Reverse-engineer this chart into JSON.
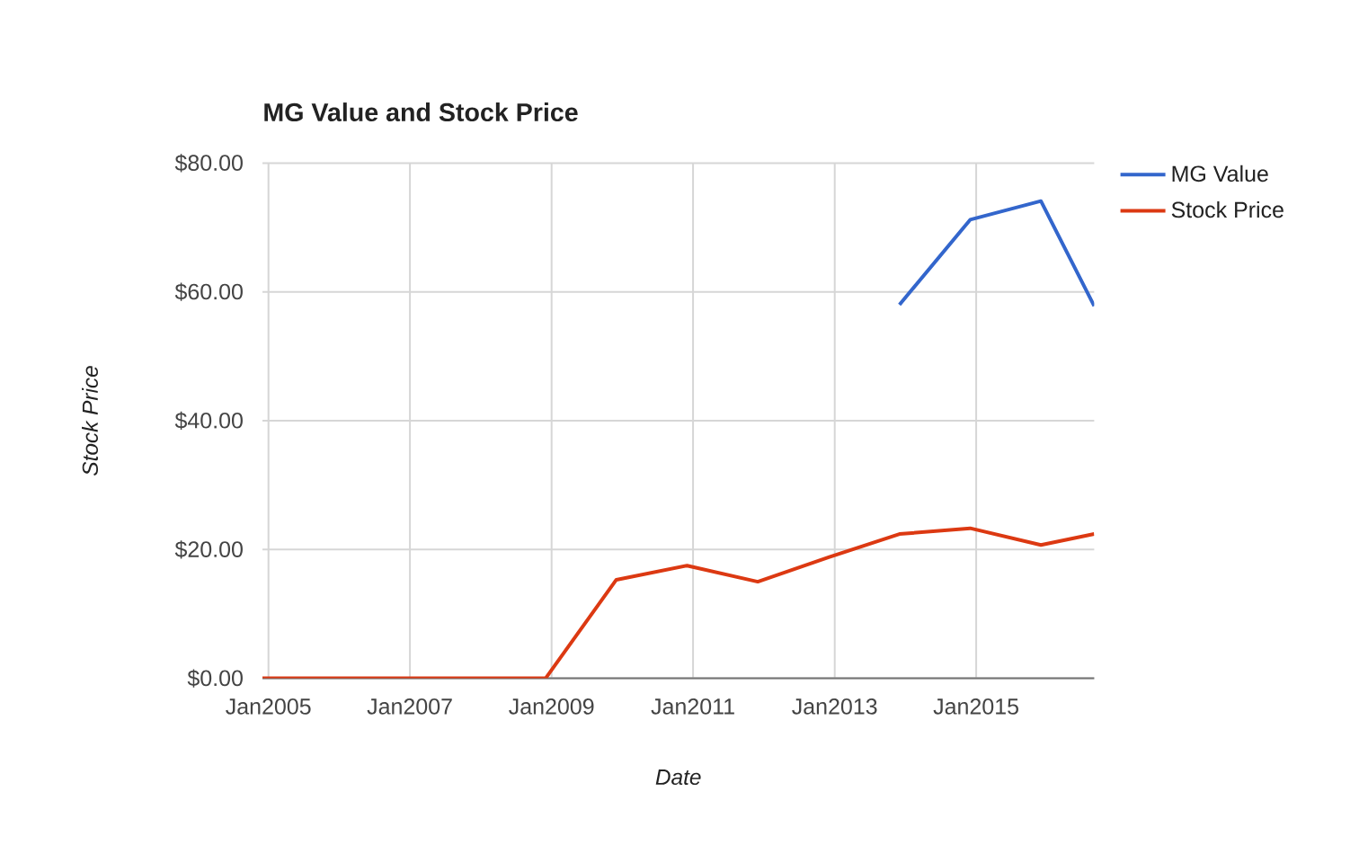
{
  "chart_data": {
    "type": "line",
    "title": "MG Value and Stock Price",
    "xlabel": "Date",
    "ylabel": "Stock Price",
    "x": [
      "2004-12",
      "2005-12",
      "2006-12",
      "2007-12",
      "2008-12",
      "2009-12",
      "2010-12",
      "2011-12",
      "2012-12",
      "2013-12",
      "2014-12",
      "2015-12",
      "2016-09"
    ],
    "series": [
      {
        "name": "MG Value",
        "color": "#3366cc",
        "values": [
          null,
          null,
          null,
          null,
          null,
          null,
          null,
          null,
          null,
          58.0,
          71.2,
          74.1,
          57.8
        ]
      },
      {
        "name": "Stock Price",
        "color": "#dc3912",
        "values": [
          0,
          0,
          0,
          0,
          0,
          15.3,
          17.5,
          15.0,
          18.8,
          22.4,
          23.3,
          20.7,
          22.4
        ]
      }
    ],
    "xlim": [
      "2004-12",
      "2016-09"
    ],
    "xticks": [
      {
        "value": "2005-01",
        "label": "Jan2005"
      },
      {
        "value": "2007-01",
        "label": "Jan2007"
      },
      {
        "value": "2009-01",
        "label": "Jan2009"
      },
      {
        "value": "2011-01",
        "label": "Jan2011"
      },
      {
        "value": "2013-01",
        "label": "Jan2013"
      },
      {
        "value": "2015-01",
        "label": "Jan2015"
      }
    ],
    "ylim": [
      0,
      80
    ],
    "yticks": [
      {
        "value": 0,
        "label": "$0.00"
      },
      {
        "value": 20,
        "label": "$20.00"
      },
      {
        "value": 40,
        "label": "$40.00"
      },
      {
        "value": 60,
        "label": "$60.00"
      },
      {
        "value": 80,
        "label": "$80.00"
      }
    ],
    "grid": true,
    "legend": "right",
    "line_style": "solid"
  }
}
